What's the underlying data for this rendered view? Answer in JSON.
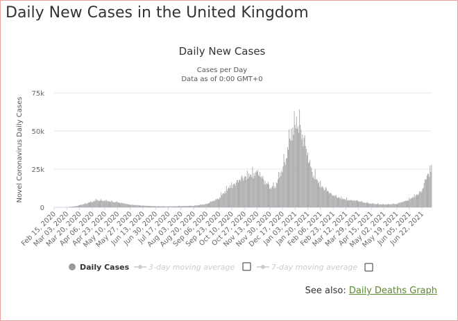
{
  "page": {
    "title": "Daily New Cases in the United Kingdom",
    "see_also_label": "See also:",
    "see_also_link": "Daily Deaths Graph"
  },
  "colors": {
    "bar": "#a6a6a6",
    "grid": "#e6e6e6",
    "link": "#5a8a2f",
    "frame": "#e8a0a0"
  },
  "chart_data": {
    "type": "bar",
    "title": "Daily New Cases",
    "subtitle_line1": "Cases per Day",
    "subtitle_line2": "Data as of 0:00 GMT+0",
    "ylabel": "Novel Coronavirus Daily Cases",
    "xlabel": "",
    "ylim": [
      0,
      75000
    ],
    "yticks": [
      0,
      25000,
      50000,
      75000
    ],
    "ytick_labels": [
      "0",
      "25k",
      "50k",
      "75k"
    ],
    "x_start": "Feb 15, 2020",
    "x_end": "Jul 05, 2021",
    "xtick_labels": [
      "Feb 15, 2020",
      "Mar 03, 2020",
      "Mar 20, 2020",
      "Apr 06, 2020",
      "Apr 23, 2020",
      "May 10, 2020",
      "May 27, 2020",
      "Jun 13, 2020",
      "Jun 30, 2020",
      "Jul 17, 2020",
      "Aug 03, 2020",
      "Aug 20, 2020",
      "Sep 06, 2020",
      "Sep 23, 2020",
      "Oct 10, 2020",
      "Oct 27, 2020",
      "Nov 13, 2020",
      "Nov 30, 2020",
      "Dec 17, 2020",
      "Jan 03, 2021",
      "Jan 20, 2021",
      "Feb 06, 2021",
      "Feb 23, 2021",
      "Mar 12, 2021",
      "Mar 29, 2021",
      "Apr 15, 2021",
      "May 02, 2021",
      "May 19, 2021",
      "Jun 05, 2021",
      "Jun 22, 2021"
    ],
    "series_name": "Daily Cases",
    "anchors": [
      [
        "Feb 15, 2020",
        0
      ],
      [
        "Mar 03, 2020",
        50
      ],
      [
        "Mar 15, 2020",
        800
      ],
      [
        "Mar 25, 2020",
        2200
      ],
      [
        "Apr 06, 2020",
        4000
      ],
      [
        "Apr 12, 2020",
        5200
      ],
      [
        "Apr 23, 2020",
        4800
      ],
      [
        "May 10, 2020",
        3600
      ],
      [
        "May 27, 2020",
        1900
      ],
      [
        "Jun 13, 2020",
        1200
      ],
      [
        "Jun 30, 2020",
        800
      ],
      [
        "Jul 17, 2020",
        650
      ],
      [
        "Aug 03, 2020",
        900
      ],
      [
        "Aug 20, 2020",
        1100
      ],
      [
        "Sep 06, 2020",
        2300
      ],
      [
        "Sep 23, 2020",
        6500
      ],
      [
        "Oct 03, 2020",
        12500
      ],
      [
        "Oct 10, 2020",
        15500
      ],
      [
        "Oct 27, 2020",
        22000
      ],
      [
        "Nov 07, 2020",
        23500
      ],
      [
        "Nov 13, 2020",
        26000
      ],
      [
        "Nov 20, 2020",
        21000
      ],
      [
        "Nov 30, 2020",
        14500
      ],
      [
        "Dec 08, 2020",
        15500
      ],
      [
        "Dec 17, 2020",
        28000
      ],
      [
        "Dec 24, 2020",
        40000
      ],
      [
        "Dec 29, 2020",
        55000
      ],
      [
        "Jan 03, 2021",
        58000
      ],
      [
        "Jan 08, 2021",
        62000
      ],
      [
        "Jan 14, 2021",
        50000
      ],
      [
        "Jan 20, 2021",
        37000
      ],
      [
        "Jan 27, 2021",
        24000
      ],
      [
        "Feb 06, 2021",
        16000
      ],
      [
        "Feb 23, 2021",
        8500
      ],
      [
        "Mar 12, 2021",
        5500
      ],
      [
        "Mar 29, 2021",
        4500
      ],
      [
        "Apr 15, 2021",
        2600
      ],
      [
        "May 02, 2021",
        2100
      ],
      [
        "May 19, 2021",
        2400
      ],
      [
        "Jun 05, 2021",
        5500
      ],
      [
        "Jun 22, 2021",
        11500
      ],
      [
        "Jun 28, 2021",
        22000
      ],
      [
        "Jul 05, 2021",
        28000
      ]
    ]
  },
  "legend": {
    "items": [
      {
        "label": "Daily Cases",
        "active": true
      },
      {
        "label": "3-day moving average",
        "active": false
      },
      {
        "label": "7-day moving average",
        "active": false
      }
    ]
  }
}
